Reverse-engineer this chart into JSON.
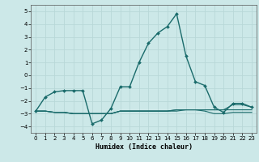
{
  "xlabel": "Humidex (Indice chaleur)",
  "bg_color": "#cce8e8",
  "grid_color": "#b8d8d8",
  "line_color": "#1a6b6b",
  "xlim": [
    -0.5,
    23.5
  ],
  "ylim": [
    -4.5,
    5.5
  ],
  "yticks": [
    -4,
    -3,
    -2,
    -1,
    0,
    1,
    2,
    3,
    4,
    5
  ],
  "xticks": [
    0,
    1,
    2,
    3,
    4,
    5,
    6,
    7,
    8,
    9,
    10,
    11,
    12,
    13,
    14,
    15,
    16,
    17,
    18,
    19,
    20,
    21,
    22,
    23
  ],
  "series": [
    {
      "x": [
        0,
        1,
        2,
        3,
        4,
        5,
        6,
        7,
        8,
        9,
        10,
        11,
        12,
        13,
        14,
        15,
        16,
        17,
        18,
        19,
        20,
        21,
        22,
        23
      ],
      "y": [
        -2.8,
        -1.7,
        -1.3,
        -1.2,
        -1.2,
        -1.2,
        -3.8,
        -3.5,
        -2.6,
        -0.9,
        -0.9,
        1.0,
        2.5,
        3.3,
        3.8,
        4.8,
        1.5,
        -0.5,
        -0.8,
        -2.5,
        -2.9,
        -2.2,
        -2.2,
        -2.5
      ],
      "marker": true,
      "lw": 1.0
    },
    {
      "x": [
        0,
        1,
        2,
        3,
        4,
        5,
        6,
        7,
        8,
        9,
        10,
        11,
        12,
        13,
        14,
        15,
        16,
        17,
        18,
        19,
        20,
        21,
        22,
        23
      ],
      "y": [
        -2.8,
        -2.8,
        -2.9,
        -2.9,
        -3.0,
        -3.0,
        -3.0,
        -3.0,
        -3.0,
        -2.8,
        -2.8,
        -2.8,
        -2.8,
        -2.8,
        -2.8,
        -2.7,
        -2.7,
        -2.7,
        -2.7,
        -2.7,
        -2.7,
        -2.7,
        -2.7,
        -2.7
      ],
      "marker": false,
      "lw": 0.8
    },
    {
      "x": [
        0,
        1,
        2,
        3,
        4,
        5,
        6,
        7,
        8,
        9,
        10,
        11,
        12,
        13,
        14,
        15,
        16,
        17,
        18,
        19,
        20,
        21,
        22,
        23
      ],
      "y": [
        -2.8,
        -2.8,
        -2.9,
        -2.9,
        -3.0,
        -3.0,
        -3.0,
        -3.0,
        -3.0,
        -2.8,
        -2.8,
        -2.8,
        -2.8,
        -2.8,
        -2.8,
        -2.7,
        -2.7,
        -2.7,
        -2.7,
        -2.7,
        -2.7,
        -2.3,
        -2.3,
        -2.5
      ],
      "marker": false,
      "lw": 0.8
    },
    {
      "x": [
        0,
        1,
        2,
        3,
        4,
        5,
        6,
        7,
        8,
        9,
        10,
        11,
        12,
        13,
        14,
        15,
        16,
        17,
        18,
        19,
        20,
        21,
        22,
        23
      ],
      "y": [
        -2.8,
        -2.8,
        -2.9,
        -2.9,
        -3.0,
        -3.0,
        -3.0,
        -3.0,
        -3.0,
        -2.8,
        -2.8,
        -2.8,
        -2.8,
        -2.8,
        -2.8,
        -2.8,
        -2.7,
        -2.7,
        -2.8,
        -3.0,
        -3.0,
        -2.9,
        -2.9,
        -2.9
      ],
      "marker": false,
      "lw": 0.8
    }
  ]
}
